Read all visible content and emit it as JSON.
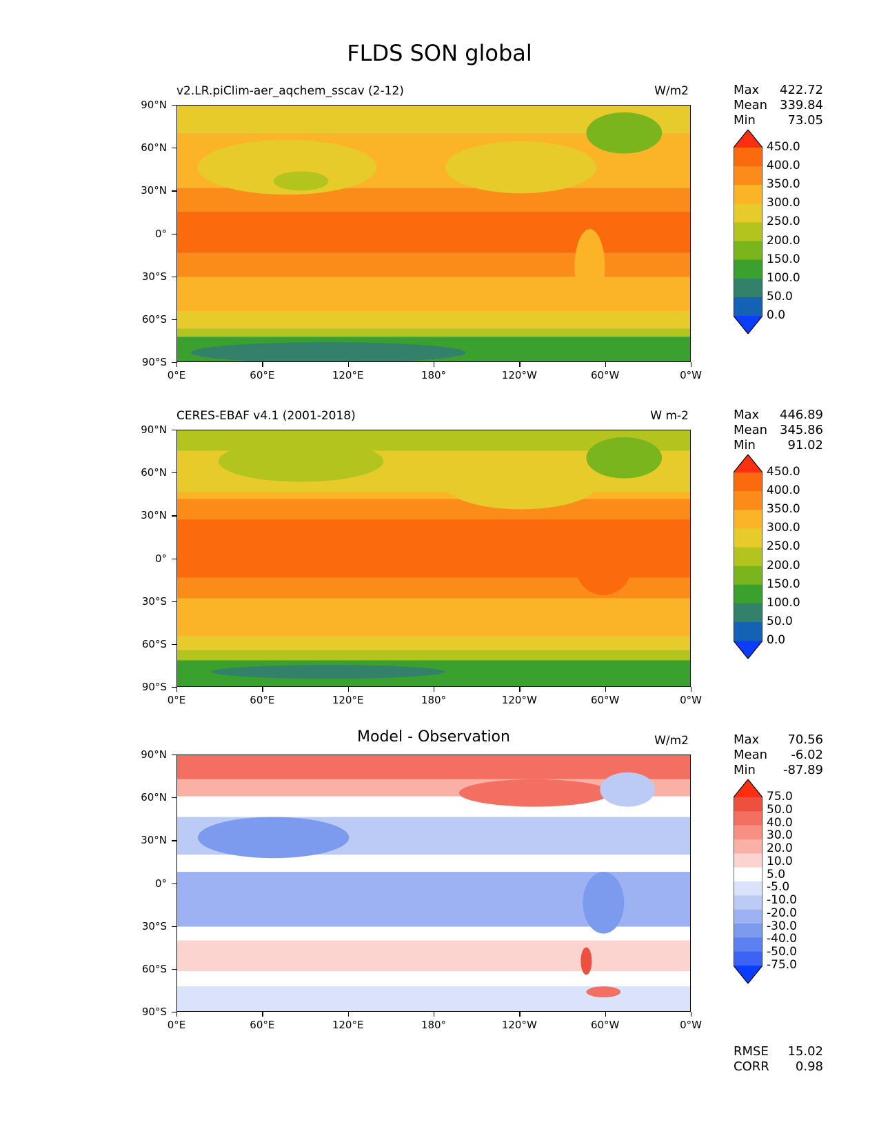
{
  "title": "FLDS SON global",
  "colors": {
    "abs": [
      "#0b3dfe",
      "#1462b3",
      "#33806b",
      "#3aa02e",
      "#7ab51e",
      "#b3c41f",
      "#e7cb2a",
      "#fbb427",
      "#fb8c1a",
      "#fb6a0c",
      "#fc2f10"
    ],
    "diff": [
      "#0b3dfe",
      "#3b63f4",
      "#5d80f0",
      "#7c9aee",
      "#9db2f2",
      "#bccbf6",
      "#dbe3fa",
      "#ffffff",
      "#fcd4cf",
      "#fbb0a5",
      "#f78f82",
      "#f36f62",
      "#ee5040",
      "#fc2f10"
    ]
  },
  "axes": {
    "ylabels": [
      "90°N",
      "60°N",
      "30°N",
      "0°",
      "30°S",
      "60°S",
      "90°S"
    ],
    "xlabels": [
      "0°E",
      "60°E",
      "120°E",
      "180°",
      "120°W",
      "60°W",
      "0°W"
    ]
  },
  "panels": [
    {
      "left_title": "v2.LR.piClim-aer_aqchem_sscav (2-12)",
      "center_title": "",
      "units": "W/m2",
      "stats": [
        {
          "label": "Max",
          "value": "422.72"
        },
        {
          "label": "Mean",
          "value": "339.84"
        },
        {
          "label": "Min",
          "value": "73.05"
        }
      ],
      "colorbar": {
        "scale": "abs",
        "labels": [
          "450.0",
          "400.0",
          "350.0",
          "300.0",
          "250.0",
          "200.0",
          "150.0",
          "100.0",
          "50.0",
          "0.0"
        ]
      },
      "bottom_stats": []
    },
    {
      "left_title": "CERES-EBAF v4.1 (2001-2018)",
      "center_title": "",
      "units": "W m-2",
      "stats": [
        {
          "label": "Max",
          "value": "446.89"
        },
        {
          "label": "Mean",
          "value": "345.86"
        },
        {
          "label": "Min",
          "value": "91.02"
        }
      ],
      "colorbar": {
        "scale": "abs",
        "labels": [
          "450.0",
          "400.0",
          "350.0",
          "300.0",
          "250.0",
          "200.0",
          "150.0",
          "100.0",
          "50.0",
          "0.0"
        ]
      },
      "bottom_stats": []
    },
    {
      "left_title": "",
      "center_title": "Model - Observation",
      "units": "W/m2",
      "stats": [
        {
          "label": "Max",
          "value": "70.56"
        },
        {
          "label": "Mean",
          "value": "-6.02"
        },
        {
          "label": "Min",
          "value": "-87.89"
        }
      ],
      "colorbar": {
        "scale": "diff",
        "labels": [
          "75.0",
          "50.0",
          "40.0",
          "30.0",
          "20.0",
          "10.0",
          "5.0",
          "-5.0",
          "-10.0",
          "-20.0",
          "-30.0",
          "-40.0",
          "-50.0",
          "-75.0"
        ]
      },
      "bottom_stats": [
        {
          "label": "RMSE",
          "value": "15.02"
        },
        {
          "label": "CORR",
          "value": "0.98"
        }
      ]
    }
  ]
}
